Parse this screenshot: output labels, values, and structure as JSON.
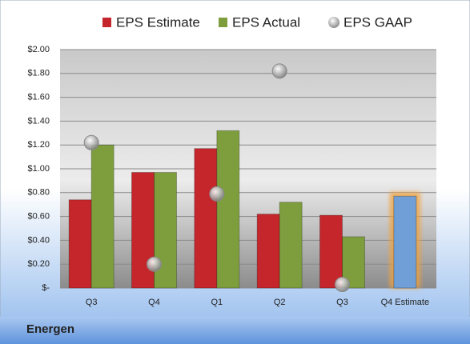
{
  "chart_data": {
    "type": "bar",
    "categories": [
      "Q3",
      "Q4",
      "Q1",
      "Q2",
      "Q3",
      "Q4 Estimate"
    ],
    "series": [
      {
        "name": "EPS Estimate",
        "color": "#c4262b",
        "values": [
          0.74,
          0.97,
          1.17,
          0.62,
          0.61,
          0.77
        ]
      },
      {
        "name": "EPS Actual",
        "color": "#7e9e3e",
        "values": [
          1.2,
          0.97,
          1.32,
          0.72,
          0.43,
          null
        ]
      },
      {
        "name": "EPS GAAP",
        "color": "#a8a8a8",
        "marker": "bubble",
        "values": [
          1.22,
          0.2,
          0.79,
          1.82,
          0.03,
          null
        ]
      }
    ],
    "highlight": {
      "index": 5,
      "color": "#6f9fd6",
      "glow": "#f2a13a"
    },
    "ylim": [
      0,
      2
    ],
    "yticks": [
      {
        "value": 0,
        "label": "$-"
      },
      {
        "value": 0.2,
        "label": "$0.20"
      },
      {
        "value": 0.4,
        "label": "$0.40"
      },
      {
        "value": 0.6,
        "label": "$0.60"
      },
      {
        "value": 0.8,
        "label": "$0.80"
      },
      {
        "value": 1.0,
        "label": "$1.00"
      },
      {
        "value": 1.2,
        "label": "$1.20"
      },
      {
        "value": 1.4,
        "label": "$1.40"
      },
      {
        "value": 1.6,
        "label": "$1.60"
      },
      {
        "value": 1.8,
        "label": "$1.80"
      },
      {
        "value": 2.0,
        "label": "$2.00"
      }
    ],
    "grid": true,
    "legend": "top",
    "footer": "Energen"
  }
}
